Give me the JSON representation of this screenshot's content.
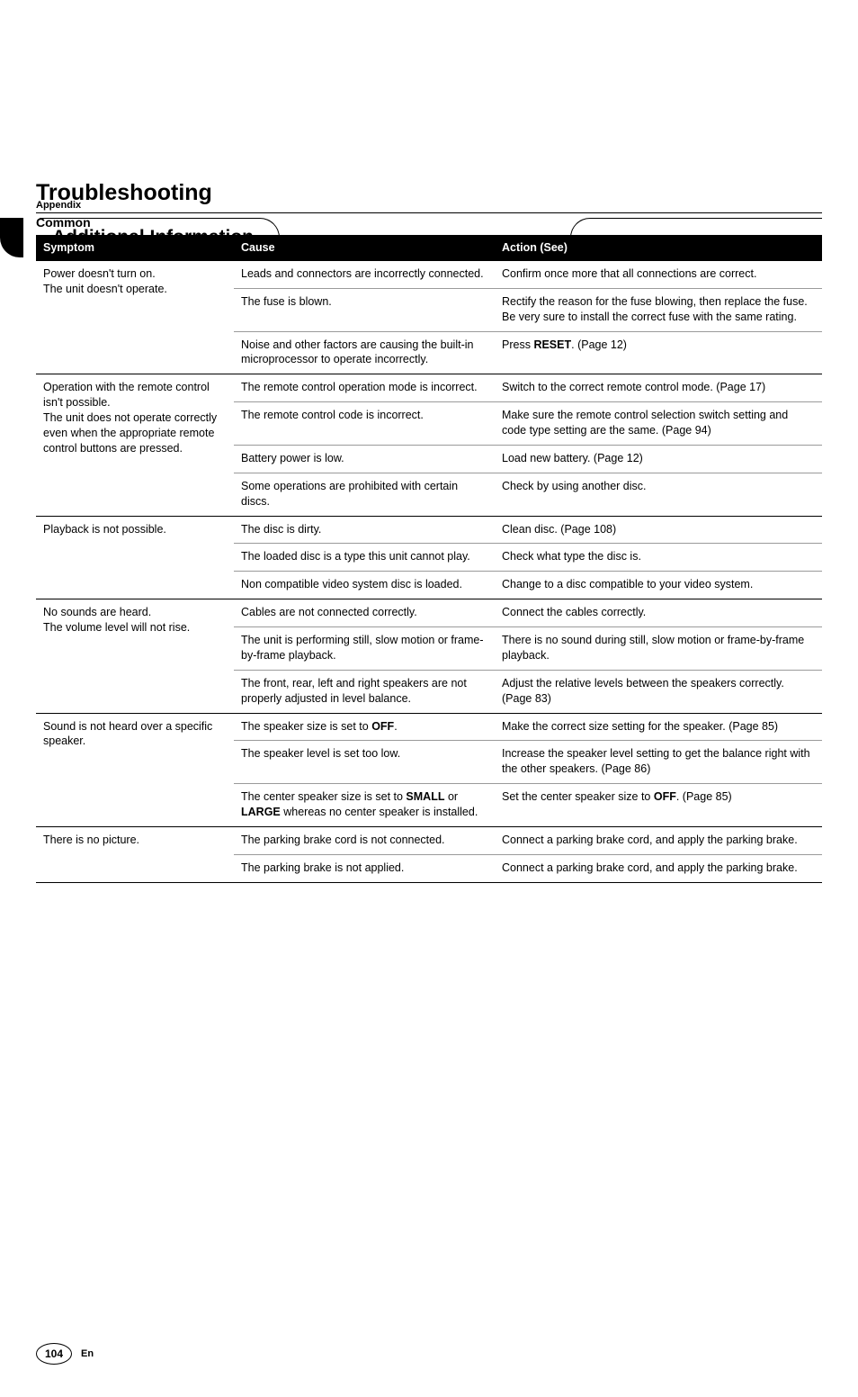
{
  "header": {
    "appendix": "Appendix",
    "section_title": "Additional Information"
  },
  "main": {
    "heading": "Troubleshooting",
    "subheading": "Common",
    "table": {
      "columns": [
        "Symptom",
        "Cause",
        "Action (See)"
      ],
      "groups": [
        {
          "symptom": "Power doesn't turn on.\nThe unit doesn't operate.",
          "rows": [
            {
              "cause": "Leads and connectors are incorrectly connected.",
              "action": "Confirm once more that all connections are correct."
            },
            {
              "cause": "The fuse is blown.",
              "action": "Rectify the reason for the fuse blowing, then replace the fuse. Be very sure to install the correct fuse with the same rating."
            },
            {
              "cause": "Noise and other factors are causing the built-in microprocessor to operate incorrectly.",
              "action_html": "Press <b>RESET</b>. (Page 12)"
            }
          ]
        },
        {
          "symptom": "Operation with the remote control isn't possible.\nThe unit does not operate correctly even when the appropriate remote control buttons are pressed.",
          "rows": [
            {
              "cause": "The remote control operation mode is incorrect.",
              "action": "Switch to the correct remote control mode. (Page 17)"
            },
            {
              "cause": "The remote control code is incorrect.",
              "action": "Make sure the remote control selection switch setting and code type setting are the same. (Page 94)"
            },
            {
              "cause": "Battery power is low.",
              "action": "Load new battery. (Page 12)"
            },
            {
              "cause": "Some operations are prohibited with certain discs.",
              "action": "Check by using another disc."
            }
          ]
        },
        {
          "symptom": "Playback is not possible.",
          "rows": [
            {
              "cause": "The disc is dirty.",
              "action": "Clean disc. (Page 108)"
            },
            {
              "cause": "The loaded disc is a type this unit cannot play.",
              "action": "Check what type the disc is."
            },
            {
              "cause": "Non compatible video system disc is loaded.",
              "action": "Change to a disc compatible to your video system."
            }
          ]
        },
        {
          "symptom": "No sounds are heard.\nThe volume level will not rise.",
          "rows": [
            {
              "cause": "Cables are not connected correctly.",
              "action": "Connect the cables correctly."
            },
            {
              "cause": "The unit is performing still, slow motion or frame-by-frame playback.",
              "action": "There is no sound during still, slow motion or frame-by-frame playback."
            },
            {
              "cause": "The front, rear, left and right speakers are not properly adjusted in level balance.",
              "action": "Adjust the relative levels between the speakers correctly. (Page 83)"
            }
          ]
        },
        {
          "symptom": "Sound is not heard over a specific speaker.",
          "rows": [
            {
              "cause_html": "The speaker size is set to <b>OFF</b>.",
              "action": "Make the correct size setting for the speaker. (Page 85)"
            },
            {
              "cause": "The speaker level is set too low.",
              "action": "Increase the speaker level setting to get the balance right with the other speakers. (Page 86)"
            },
            {
              "cause_html": "The center speaker size is set to <b>SMALL</b> or <b>LARGE</b> whereas no center speaker is installed.",
              "action_html": "Set the center speaker size to <b>OFF</b>. (Page 85)"
            }
          ]
        },
        {
          "symptom": "There is no picture.",
          "rows": [
            {
              "cause": "The parking brake cord is not connected.",
              "action": "Connect a parking brake cord, and apply the parking brake."
            },
            {
              "cause": "The parking brake is not applied.",
              "action": "Connect a parking brake cord, and apply the parking brake."
            }
          ]
        }
      ]
    }
  },
  "footer": {
    "page_number": "104",
    "lang": "En"
  }
}
